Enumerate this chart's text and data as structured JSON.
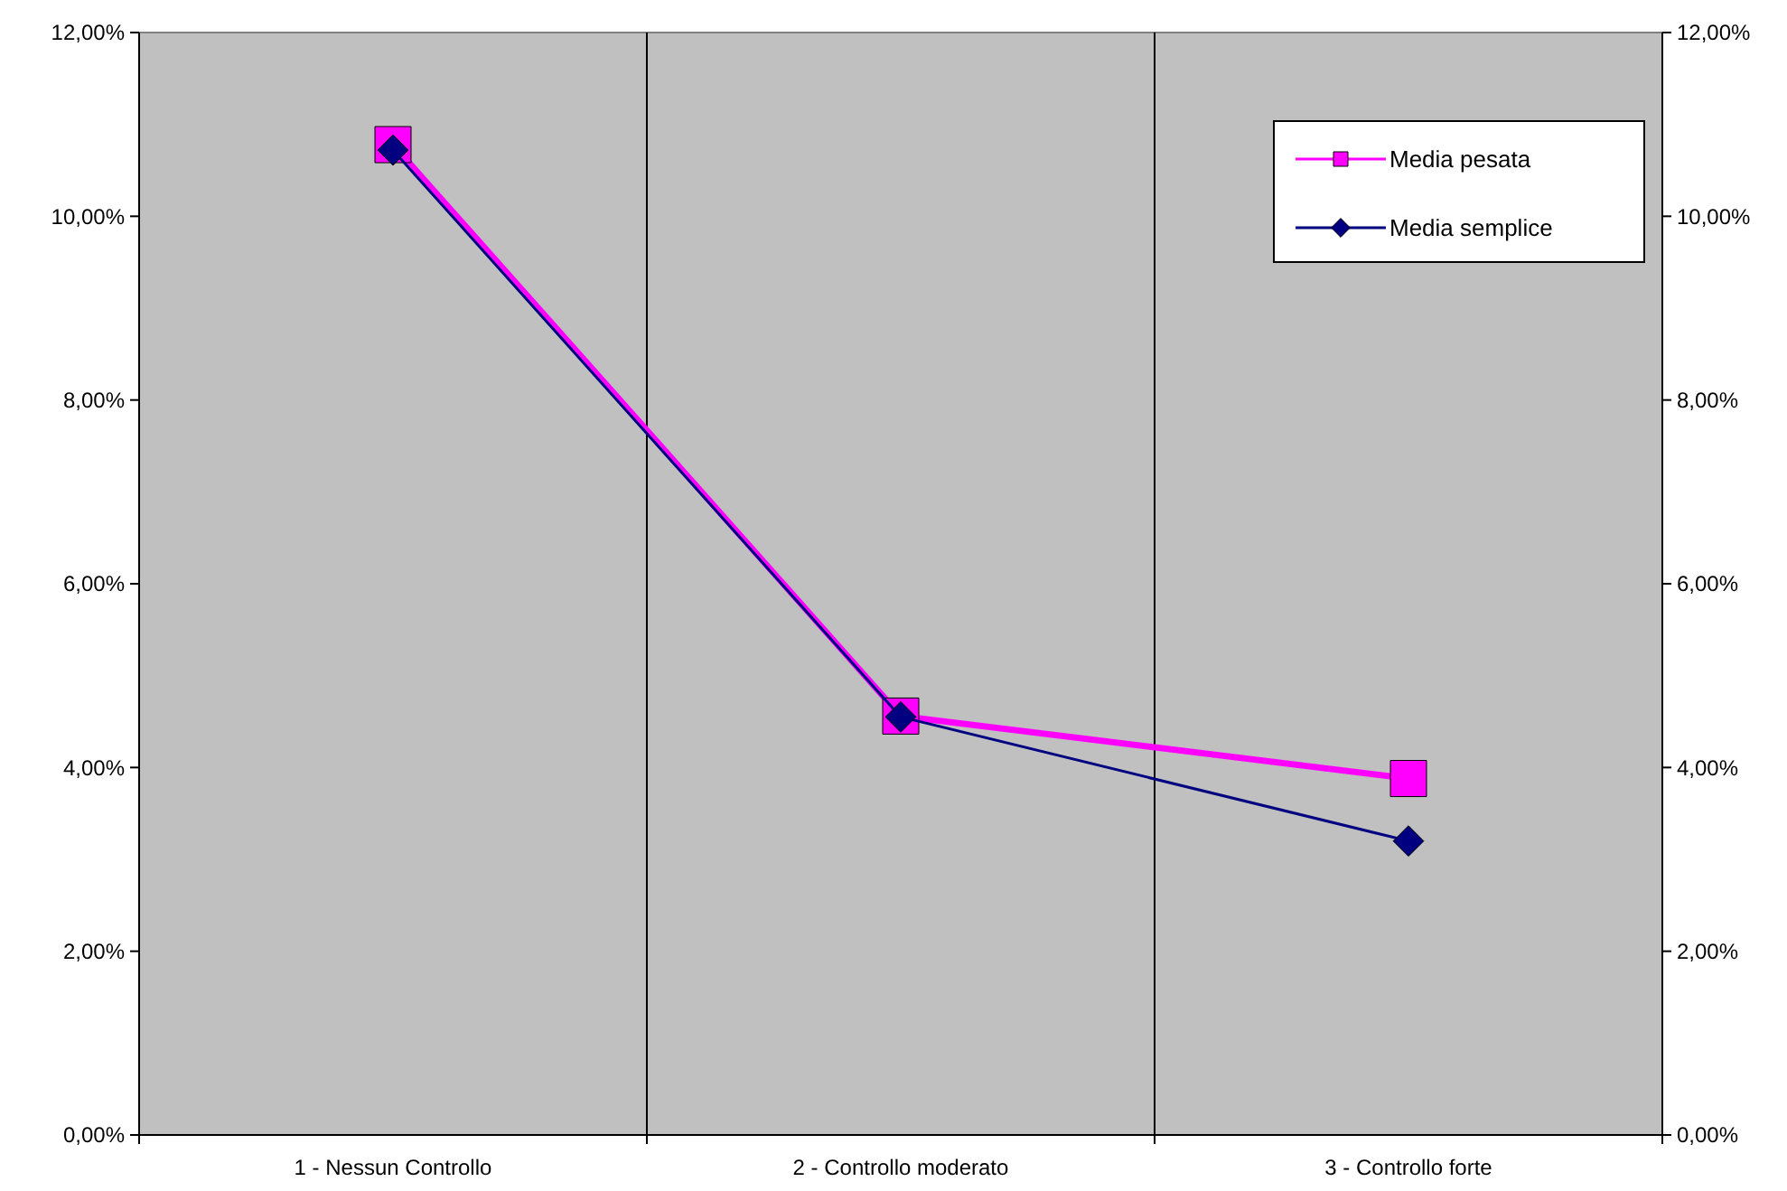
{
  "chart_data": {
    "type": "line",
    "categories": [
      "1 - Nessun Controllo",
      "2 - Controllo moderato",
      "3 - Controllo forte"
    ],
    "series": [
      {
        "name": "Media pesata",
        "color": "#ff00ff",
        "marker": "square",
        "values": [
          10.78,
          4.56,
          3.88
        ]
      },
      {
        "name": "Media semplice",
        "color": "#000080",
        "marker": "diamond",
        "values": [
          10.72,
          4.55,
          3.2
        ]
      }
    ],
    "ylim": [
      0,
      12
    ],
    "yticks": [
      {
        "value": 0,
        "label": "0,00%"
      },
      {
        "value": 2,
        "label": "2,00%"
      },
      {
        "value": 4,
        "label": "4,00%"
      },
      {
        "value": 6,
        "label": "6,00%"
      },
      {
        "value": 8,
        "label": "8,00%"
      },
      {
        "value": 10,
        "label": "10,00%"
      },
      {
        "value": 12,
        "label": "12,00%"
      }
    ],
    "y2lim": [
      0,
      12
    ],
    "y2ticks": [
      {
        "value": 0,
        "label": "0,00%"
      },
      {
        "value": 2,
        "label": "2,00%"
      },
      {
        "value": 4,
        "label": "4,00%"
      },
      {
        "value": 6,
        "label": "6,00%"
      },
      {
        "value": 8,
        "label": "8,00%"
      },
      {
        "value": 10,
        "label": "10,00%"
      },
      {
        "value": 12,
        "label": "12,00%"
      }
    ],
    "grid": "x",
    "legend": "top right"
  }
}
